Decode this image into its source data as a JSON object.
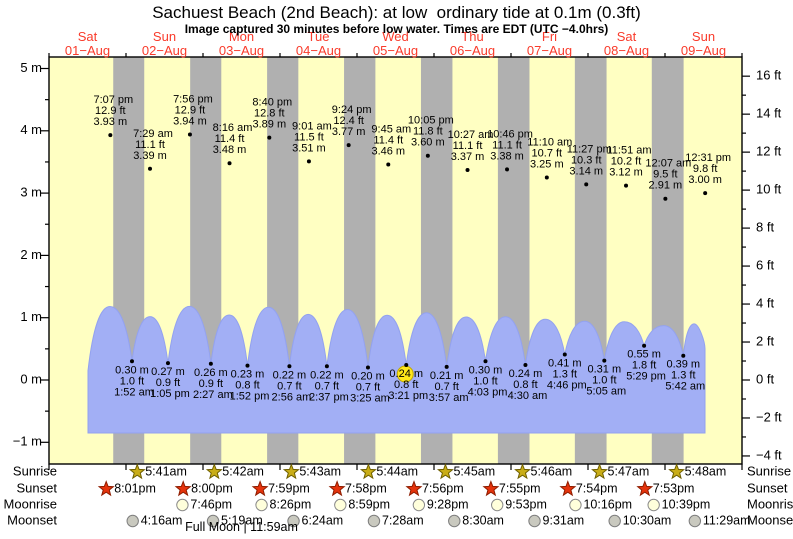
{
  "header": {
    "title": "Sachuest Beach (2nd Beach): at low  ordinary tide at 0.1m (0.3ft)",
    "subtitle": "Image captured 30 minutes before low water. Times are EDT (UTC −4.0hrs)"
  },
  "days": [
    {
      "weekday": "Sat",
      "date": "01−Aug"
    },
    {
      "weekday": "Sun",
      "date": "02−Aug"
    },
    {
      "weekday": "Mon",
      "date": "03−Aug"
    },
    {
      "weekday": "Tue",
      "date": "04−Aug"
    },
    {
      "weekday": "Wed",
      "date": "05−Aug"
    },
    {
      "weekday": "Thu",
      "date": "06−Aug"
    },
    {
      "weekday": "Fri",
      "date": "07−Aug"
    },
    {
      "weekday": "Sat",
      "date": "08−Aug"
    },
    {
      "weekday": "Sun",
      "date": "09−Aug"
    }
  ],
  "chart_data": {
    "type": "area",
    "title": "Sachuest Beach (2nd Beach): at low  ordinary tide at 0.1m (0.3ft)",
    "y_axis_left": {
      "unit": "m",
      "ticks": [
        {
          "label": "5 m",
          "value": 5
        },
        {
          "label": "4 m",
          "value": 4
        },
        {
          "label": "3 m",
          "value": 3
        },
        {
          "label": "2 m",
          "value": 2
        },
        {
          "label": "1 m",
          "value": 1
        },
        {
          "label": "0 m",
          "value": 0
        },
        {
          "label": "−1 m",
          "value": -1
        }
      ]
    },
    "y_axis_right": {
      "unit": "ft",
      "ticks": [
        {
          "label": "16 ft",
          "value": 16
        },
        {
          "label": "14 ft",
          "value": 14
        },
        {
          "label": "12 ft",
          "value": 12
        },
        {
          "label": "10 ft",
          "value": 10
        },
        {
          "label": "8 ft",
          "value": 8
        },
        {
          "label": "6 ft",
          "value": 6
        },
        {
          "label": "4 ft",
          "value": 4
        },
        {
          "label": "2 ft",
          "value": 2
        },
        {
          "label": "0 ft",
          "value": 0
        },
        {
          "label": "−2 ft",
          "value": -2
        },
        {
          "label": "−4 ft",
          "value": -4
        }
      ]
    },
    "high_tides": [
      {
        "day": 1,
        "time": "7:07 pm",
        "ft": 12.9,
        "m": 3.93
      },
      {
        "day": 2,
        "time": "7:29 am",
        "ft": 11.1,
        "m": 3.39
      },
      {
        "day": 2,
        "time": "7:56 pm",
        "ft": 12.9,
        "m": 3.94
      },
      {
        "day": 3,
        "time": "8:16 am",
        "ft": 11.4,
        "m": 3.48
      },
      {
        "day": 3,
        "time": "8:40 pm",
        "ft": 12.8,
        "m": 3.89
      },
      {
        "day": 4,
        "time": "9:01 am",
        "ft": 11.5,
        "m": 3.51
      },
      {
        "day": 4,
        "time": "9:24 pm",
        "ft": 12.4,
        "m": 3.77
      },
      {
        "day": 5,
        "time": "9:45 am",
        "ft": 11.4,
        "m": 3.46
      },
      {
        "day": 5,
        "time": "10:05 pm",
        "ft": 11.8,
        "m": 3.6
      },
      {
        "day": 6,
        "time": "10:27 am",
        "ft": 11.1,
        "m": 3.37
      },
      {
        "day": 6,
        "time": "10:46 pm",
        "ft": 11.1,
        "m": 3.38
      },
      {
        "day": 7,
        "time": "11:10 am",
        "ft": 10.7,
        "m": 3.25
      },
      {
        "day": 7,
        "time": "11:27 pm",
        "ft": 10.3,
        "m": 3.14
      },
      {
        "day": 8,
        "time": "11:51 am",
        "ft": 10.2,
        "m": 3.12
      },
      {
        "day": 9,
        "time": "12:07 am",
        "ft": 9.5,
        "m": 2.91
      },
      {
        "day": 9,
        "time": "12:31 pm",
        "ft": 9.8,
        "m": 3.0
      }
    ],
    "low_tides": [
      {
        "day": 2,
        "time": "1:52 am",
        "ft": 1.0,
        "m": 0.3
      },
      {
        "day": 2,
        "time": "1:05 pm",
        "ft": 0.9,
        "m": 0.27
      },
      {
        "day": 3,
        "time": "2:27 am",
        "ft": 0.9,
        "m": 0.26
      },
      {
        "day": 3,
        "time": "1:52 pm",
        "ft": 0.8,
        "m": 0.23
      },
      {
        "day": 4,
        "time": "2:56 am",
        "ft": 0.7,
        "m": 0.22
      },
      {
        "day": 4,
        "time": "2:37 pm",
        "ft": 0.7,
        "m": 0.22
      },
      {
        "day": 5,
        "time": "3:25 am",
        "ft": 0.7,
        "m": 0.2
      },
      {
        "day": 5,
        "time": "3:21 pm",
        "ft": 0.8,
        "m": 0.24,
        "current": true
      },
      {
        "day": 6,
        "time": "3:57 am",
        "ft": 0.7,
        "m": 0.21
      },
      {
        "day": 6,
        "time": "4:03 pm",
        "ft": 1.0,
        "m": 0.3
      },
      {
        "day": 7,
        "time": "4:30 am",
        "ft": 0.8,
        "m": 0.24
      },
      {
        "day": 7,
        "time": "4:46 pm",
        "ft": 1.3,
        "m": 0.41
      },
      {
        "day": 8,
        "time": "5:05 am",
        "ft": 1.0,
        "m": 0.31
      },
      {
        "day": 8,
        "time": "5:29 pm",
        "ft": 1.8,
        "m": 0.55
      },
      {
        "day": 9,
        "time": "5:42 am",
        "ft": 1.3,
        "m": 0.39
      }
    ]
  },
  "astro": {
    "row_labels": [
      "Sunrise",
      "Sunset",
      "Moonrise",
      "Moonset"
    ],
    "sunrise": [
      {
        "day": 2,
        "time": "5:41am"
      },
      {
        "day": 3,
        "time": "5:42am"
      },
      {
        "day": 4,
        "time": "5:43am"
      },
      {
        "day": 5,
        "time": "5:44am"
      },
      {
        "day": 6,
        "time": "5:45am"
      },
      {
        "day": 7,
        "time": "5:46am"
      },
      {
        "day": 8,
        "time": "5:47am"
      },
      {
        "day": 9,
        "time": "5:48am"
      }
    ],
    "sunset": [
      {
        "day": 1,
        "time": "8:01pm"
      },
      {
        "day": 2,
        "time": "8:00pm"
      },
      {
        "day": 3,
        "time": "7:59pm"
      },
      {
        "day": 4,
        "time": "7:58pm"
      },
      {
        "day": 5,
        "time": "7:56pm"
      },
      {
        "day": 6,
        "time": "7:55pm"
      },
      {
        "day": 7,
        "time": "7:54pm"
      },
      {
        "day": 8,
        "time": "7:53pm"
      }
    ],
    "moonrise": [
      {
        "day": 2,
        "time": "7:46pm"
      },
      {
        "day": 3,
        "time": "8:26pm"
      },
      {
        "day": 4,
        "time": "8:59pm"
      },
      {
        "day": 5,
        "time": "9:28pm"
      },
      {
        "day": 6,
        "time": "9:53pm"
      },
      {
        "day": 7,
        "time": "10:16pm"
      },
      {
        "day": 8,
        "time": "10:39pm"
      }
    ],
    "moonset": [
      {
        "day": 2,
        "time": "4:16am"
      },
      {
        "day": 3,
        "time": "5:19am"
      },
      {
        "day": 4,
        "time": "6:24am"
      },
      {
        "day": 5,
        "time": "7:28am"
      },
      {
        "day": 6,
        "time": "8:30am"
      },
      {
        "day": 7,
        "time": "9:31am"
      },
      {
        "day": 8,
        "time": "10:30am"
      },
      {
        "day": 9,
        "time": "11:29am"
      }
    ],
    "full_moon": {
      "day": 3,
      "text": "Full Moon | 11:59am"
    }
  },
  "colors": {
    "day_bg": "#ffffc2",
    "night_bg": "#b0b0b0",
    "wave_fill": "#a2aff5",
    "wave_stroke": "#93a2ef",
    "label_red": "#f93b2b",
    "highlight": "#ffe81a",
    "highlight_stroke": "#c2a800",
    "sunrise_star": "#c9ad17",
    "sunrise_star_stroke": "#6e5f00",
    "sunset_star": "#e5330c",
    "sunset_star_stroke": "#8e1d00",
    "moonrise_fill": "#ffffdb",
    "moonrise_stroke": "#8a8a8a",
    "moonset_fill": "#c9c9bf",
    "moonset_stroke": "#7d7d7d"
  }
}
